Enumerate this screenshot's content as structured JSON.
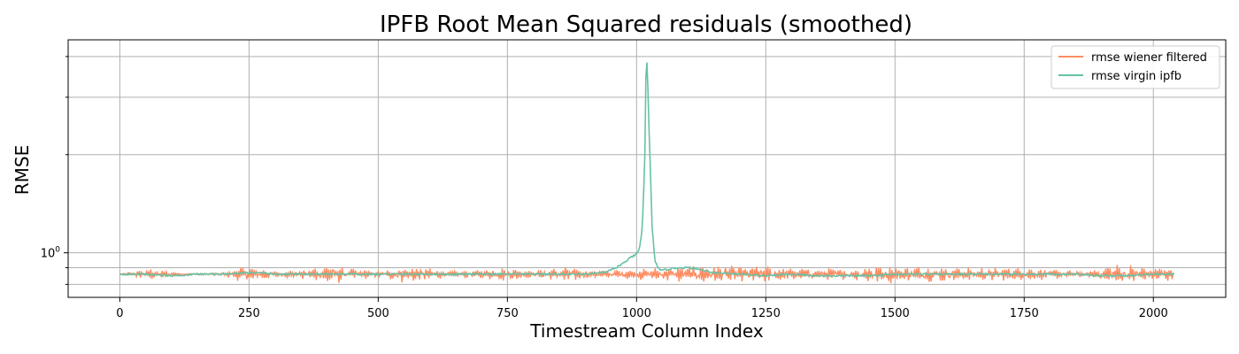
{
  "colors": {
    "wiener": "#fc8d62",
    "virgin": "#66c2a5",
    "grid": "#b0b0b0"
  },
  "chart_data": {
    "type": "line",
    "title": "IPFB Root Mean Squared residuals (smoothed)",
    "xlabel": "Timestream Column Index",
    "ylabel": "RMSE",
    "yscale": "log",
    "xlim": [
      -100,
      2140
    ],
    "ylim": [
      0.73,
      4.5
    ],
    "grid": true,
    "legend_position": "top-right",
    "x_ticks": [
      0,
      250,
      500,
      750,
      1000,
      1250,
      1500,
      1750,
      2000
    ],
    "x_tick_labels": [
      "0",
      "250",
      "500",
      "750",
      "1000",
      "1250",
      "1500",
      "1750",
      "2000"
    ],
    "y_major_ticks": [
      1.0
    ],
    "y_major_tick_labels": [
      "10^0"
    ],
    "y_minor_ticks": [
      0.8,
      0.9,
      2,
      3,
      4
    ],
    "series": [
      {
        "name": "rmse wiener filtered",
        "color": "#fc8d62",
        "x_start": 0,
        "x_end": 2040,
        "base": 0.86,
        "noise_envelope": [
          [
            0,
            0.003
          ],
          [
            60,
            0.04
          ],
          [
            120,
            0.006
          ],
          [
            185,
            0.008
          ],
          [
            240,
            0.06
          ],
          [
            310,
            0.02
          ],
          [
            410,
            0.07
          ],
          [
            500,
            0.02
          ],
          [
            560,
            0.07
          ],
          [
            640,
            0.02
          ],
          [
            750,
            0.05
          ],
          [
            800,
            0.02
          ],
          [
            860,
            0.06
          ],
          [
            940,
            0.03
          ],
          [
            1000,
            0.04
          ],
          [
            1100,
            0.06
          ],
          [
            1200,
            0.07
          ],
          [
            1300,
            0.05
          ],
          [
            1400,
            0.04
          ],
          [
            1470,
            0.07
          ],
          [
            1530,
            0.06
          ],
          [
            1600,
            0.05
          ],
          [
            1700,
            0.05
          ],
          [
            1800,
            0.04
          ],
          [
            1870,
            0.02
          ],
          [
            1920,
            0.08
          ],
          [
            1980,
            0.06
          ],
          [
            2040,
            0.05
          ]
        ]
      },
      {
        "name": "rmse virgin ipfb",
        "color": "#66c2a5",
        "points": [
          [
            0,
            0.86
          ],
          [
            50,
            0.86
          ],
          [
            100,
            0.85
          ],
          [
            150,
            0.86
          ],
          [
            200,
            0.86
          ],
          [
            250,
            0.87
          ],
          [
            300,
            0.86
          ],
          [
            350,
            0.86
          ],
          [
            400,
            0.86
          ],
          [
            450,
            0.86
          ],
          [
            500,
            0.86
          ],
          [
            550,
            0.86
          ],
          [
            600,
            0.86
          ],
          [
            650,
            0.86
          ],
          [
            700,
            0.86
          ],
          [
            750,
            0.86
          ],
          [
            800,
            0.86
          ],
          [
            850,
            0.86
          ],
          [
            900,
            0.86
          ],
          [
            940,
            0.87
          ],
          [
            960,
            0.9
          ],
          [
            975,
            0.93
          ],
          [
            990,
            0.97
          ],
          [
            1000,
            0.99
          ],
          [
            1005,
            1.02
          ],
          [
            1010,
            1.15
          ],
          [
            1013,
            1.4
          ],
          [
            1016,
            2.0
          ],
          [
            1019,
            4.2
          ],
          [
            1021,
            3.5
          ],
          [
            1024,
            2.4
          ],
          [
            1027,
            1.7
          ],
          [
            1030,
            1.2
          ],
          [
            1035,
            0.95
          ],
          [
            1045,
            0.88
          ],
          [
            1060,
            0.89
          ],
          [
            1080,
            0.9
          ],
          [
            1100,
            0.9
          ],
          [
            1120,
            0.89
          ],
          [
            1150,
            0.87
          ],
          [
            1200,
            0.86
          ],
          [
            1250,
            0.85
          ],
          [
            1300,
            0.86
          ],
          [
            1350,
            0.85
          ],
          [
            1400,
            0.85
          ],
          [
            1450,
            0.85
          ],
          [
            1500,
            0.86
          ],
          [
            1550,
            0.86
          ],
          [
            1600,
            0.86
          ],
          [
            1650,
            0.86
          ],
          [
            1700,
            0.86
          ],
          [
            1750,
            0.86
          ],
          [
            1800,
            0.86
          ],
          [
            1850,
            0.86
          ],
          [
            1900,
            0.85
          ],
          [
            1950,
            0.85
          ],
          [
            2000,
            0.86
          ],
          [
            2040,
            0.86
          ]
        ]
      }
    ]
  }
}
